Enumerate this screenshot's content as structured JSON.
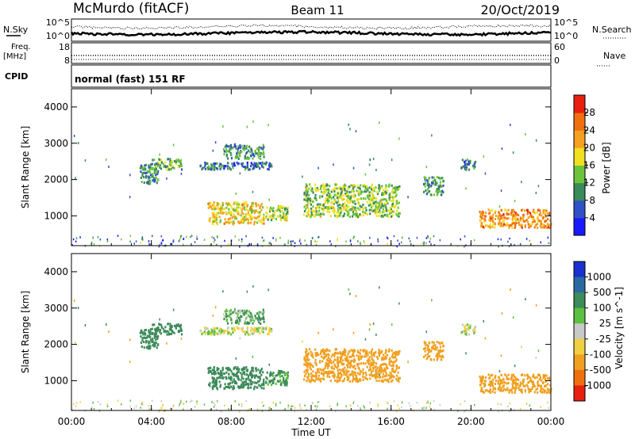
{
  "header": {
    "station": "McMurdo (fitACF)",
    "beam": "Beam 11",
    "date": "20/Oct/2019"
  },
  "noise_panel": {
    "left_label": "N.Sky",
    "left_top_tick": "10^5",
    "left_bottom_tick": "10^0",
    "right_label": "N.Search",
    "right_top_tick": "10^5",
    "right_bottom_tick": "10^0"
  },
  "freq_panel": {
    "left_label_1": "Freq.",
    "left_label_2": "[MHz]",
    "left_top_tick": "18",
    "left_bottom_tick": "8",
    "right_label": "Nave",
    "right_top_tick": "60",
    "right_bottom_tick": "0"
  },
  "cpid_panel": {
    "label": "CPID",
    "text": "normal (fast) 151 RF"
  },
  "x_axis": {
    "title": "Time UT",
    "ticks": [
      "00:00",
      "04:00",
      "08:00",
      "12:00",
      "16:00",
      "20:00",
      "00:00"
    ]
  },
  "power_panel": {
    "y_title": "Slant Range [km]",
    "y_ticks": [
      "1000",
      "2000",
      "3000",
      "4000"
    ],
    "cbar_title": "Power [dB]",
    "cbar_ticks": [
      "4",
      "8",
      "12",
      "16",
      "20",
      "24",
      "28"
    ],
    "cbar_colors": [
      "#1a1aff",
      "#3050c8",
      "#3a8a5a",
      "#6cc43c",
      "#f0e020",
      "#f5a020",
      "#f07010",
      "#e82010"
    ]
  },
  "velocity_panel": {
    "y_title": "Slant Range [km]",
    "y_ticks": [
      "1000",
      "2000",
      "3000",
      "4000"
    ],
    "cbar_title": "Velocity [m s^-1]",
    "cbar_ticks": [
      "1000",
      "500",
      "100",
      "25",
      "-25",
      "-100",
      "-500",
      "-1000"
    ],
    "cbar_colors": [
      "#1a30d0",
      "#2a6aa0",
      "#3d8a5a",
      "#5cc040",
      "#c8c8c8",
      "#f0d040",
      "#f0a020",
      "#f07010",
      "#e82010"
    ]
  },
  "chart_data": [
    {
      "type": "heatmap",
      "title": "Power [dB]",
      "xlabel": "Time UT",
      "ylabel": "Slant Range [km]",
      "x_range": [
        "00:00",
        "24:00"
      ],
      "ylim": [
        180,
        4500
      ],
      "colorbar_range": [
        0,
        30
      ],
      "regions": [
        {
          "t0": 3.4,
          "t1": 4.3,
          "r0": 1900,
          "r1": 2500,
          "value": 10
        },
        {
          "t0": 4.0,
          "t1": 5.5,
          "r0": 2300,
          "r1": 2600,
          "value": 12
        },
        {
          "t0": 6.8,
          "t1": 9.6,
          "r0": 800,
          "r1": 1400,
          "value": 18
        },
        {
          "t0": 9.6,
          "t1": 10.8,
          "r0": 900,
          "r1": 1300,
          "value": 14
        },
        {
          "t0": 6.4,
          "t1": 10.0,
          "r0": 2300,
          "r1": 2500,
          "value": 8
        },
        {
          "t0": 7.6,
          "t1": 9.6,
          "r0": 2600,
          "r1": 3000,
          "value": 10
        },
        {
          "t0": 11.6,
          "t1": 16.4,
          "r0": 1000,
          "r1": 1900,
          "value": 14
        },
        {
          "t0": 17.6,
          "t1": 18.6,
          "r0": 1600,
          "r1": 2100,
          "value": 10
        },
        {
          "t0": 19.4,
          "t1": 20.2,
          "r0": 2300,
          "r1": 2600,
          "value": 8
        },
        {
          "t0": 20.4,
          "t1": 24.0,
          "r0": 700,
          "r1": 1200,
          "value": 22
        }
      ]
    },
    {
      "type": "heatmap",
      "title": "Velocity [m s^-1]",
      "xlabel": "Time UT",
      "ylabel": "Slant Range [km]",
      "x_range": [
        "00:00",
        "24:00"
      ],
      "ylim": [
        180,
        4500
      ],
      "colorbar_range": [
        -1000,
        1000
      ],
      "regions": [
        {
          "t0": 3.4,
          "t1": 4.3,
          "r0": 1900,
          "r1": 2500,
          "value": 400
        },
        {
          "t0": 4.0,
          "t1": 5.5,
          "r0": 2300,
          "r1": 2600,
          "value": 400
        },
        {
          "t0": 6.8,
          "t1": 9.6,
          "r0": 800,
          "r1": 1400,
          "value": 400
        },
        {
          "t0": 9.6,
          "t1": 10.8,
          "r0": 900,
          "r1": 1300,
          "value": 120
        },
        {
          "t0": 6.4,
          "t1": 10.0,
          "r0": 2300,
          "r1": 2500,
          "value": 0
        },
        {
          "t0": 7.6,
          "t1": 9.6,
          "r0": 2600,
          "r1": 3000,
          "value": 100
        },
        {
          "t0": 11.6,
          "t1": 16.4,
          "r0": 1000,
          "r1": 1900,
          "value": -300
        },
        {
          "t0": 17.6,
          "t1": 18.6,
          "r0": 1600,
          "r1": 2100,
          "value": -200
        },
        {
          "t0": 19.4,
          "t1": 20.2,
          "r0": 2300,
          "r1": 2600,
          "value": 0
        },
        {
          "t0": 20.4,
          "t1": 24.0,
          "r0": 700,
          "r1": 1200,
          "value": -300
        }
      ]
    }
  ]
}
